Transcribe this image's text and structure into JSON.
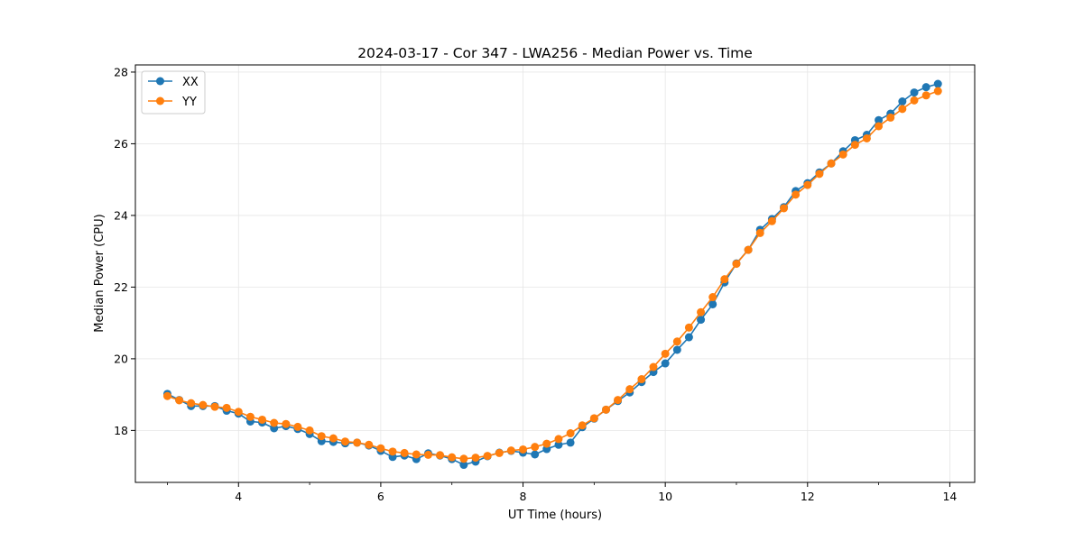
{
  "chart_data": {
    "type": "line",
    "title": "2024-03-17 - Cor 347 - LWA256 - Median Power vs. Time",
    "xlabel": "UT Time (hours)",
    "ylabel": "Median Power (CPU)",
    "xlim": [
      2.55,
      14.35
    ],
    "ylim": [
      16.55,
      28.2
    ],
    "xticks": [
      4,
      6,
      8,
      10,
      12,
      14
    ],
    "xtick_labels": [
      "4",
      "6",
      "8",
      "10",
      "12",
      "14"
    ],
    "xminor": [
      3,
      5,
      7,
      9,
      11,
      13
    ],
    "yticks": [
      18,
      20,
      22,
      24,
      26,
      28
    ],
    "ytick_labels": [
      "18",
      "20",
      "22",
      "24",
      "26",
      "28"
    ],
    "grid": true,
    "legend_position": "upper-left",
    "x": [
      3.0,
      3.167,
      3.333,
      3.5,
      3.667,
      3.833,
      4.0,
      4.167,
      4.333,
      4.5,
      4.667,
      4.833,
      5.0,
      5.167,
      5.333,
      5.5,
      5.667,
      5.833,
      6.0,
      6.167,
      6.333,
      6.5,
      6.667,
      6.833,
      7.0,
      7.167,
      7.333,
      7.5,
      7.667,
      7.833,
      8.0,
      8.167,
      8.333,
      8.5,
      8.667,
      8.833,
      9.0,
      9.167,
      9.333,
      9.5,
      9.667,
      9.833,
      10.0,
      10.167,
      10.333,
      10.5,
      10.667,
      10.833,
      11.0,
      11.167,
      11.333,
      11.5,
      11.667,
      11.833,
      12.0,
      12.167,
      12.333,
      12.5,
      12.667,
      12.833,
      13.0,
      13.167,
      13.333,
      13.5,
      13.667,
      13.833
    ],
    "series": [
      {
        "name": "XX",
        "color": "#1f77b4",
        "values": [
          19.02,
          18.85,
          18.68,
          18.68,
          18.68,
          18.55,
          18.47,
          18.25,
          18.22,
          18.06,
          18.12,
          18.04,
          17.9,
          17.7,
          17.68,
          17.64,
          17.66,
          17.58,
          17.43,
          17.26,
          17.3,
          17.2,
          17.36,
          17.3,
          17.2,
          17.04,
          17.13,
          17.28,
          17.38,
          17.43,
          17.38,
          17.33,
          17.48,
          17.6,
          17.66,
          18.09,
          18.33,
          18.58,
          18.82,
          19.06,
          19.35,
          19.63,
          19.87,
          20.25,
          20.6,
          21.09,
          21.52,
          22.13,
          22.66,
          23.04,
          23.6,
          23.9,
          24.23,
          24.68,
          24.9,
          25.2,
          25.45,
          25.79,
          26.1,
          26.25,
          26.66,
          26.84,
          27.18,
          27.43,
          27.58,
          27.67
        ]
      },
      {
        "name": "YY",
        "color": "#ff7f0e",
        "values": [
          18.96,
          18.84,
          18.76,
          18.71,
          18.66,
          18.63,
          18.52,
          18.38,
          18.3,
          18.21,
          18.18,
          18.1,
          18.0,
          17.84,
          17.78,
          17.69,
          17.66,
          17.6,
          17.5,
          17.41,
          17.37,
          17.33,
          17.32,
          17.31,
          17.25,
          17.21,
          17.24,
          17.29,
          17.37,
          17.44,
          17.47,
          17.54,
          17.63,
          17.76,
          17.92,
          18.14,
          18.34,
          18.58,
          18.85,
          19.15,
          19.43,
          19.77,
          20.14,
          20.48,
          20.87,
          21.3,
          21.72,
          22.22,
          22.65,
          23.04,
          23.51,
          23.84,
          24.2,
          24.58,
          24.85,
          25.16,
          25.45,
          25.7,
          25.97,
          26.15,
          26.49,
          26.73,
          26.97,
          27.21,
          27.35,
          27.47
        ]
      }
    ]
  }
}
